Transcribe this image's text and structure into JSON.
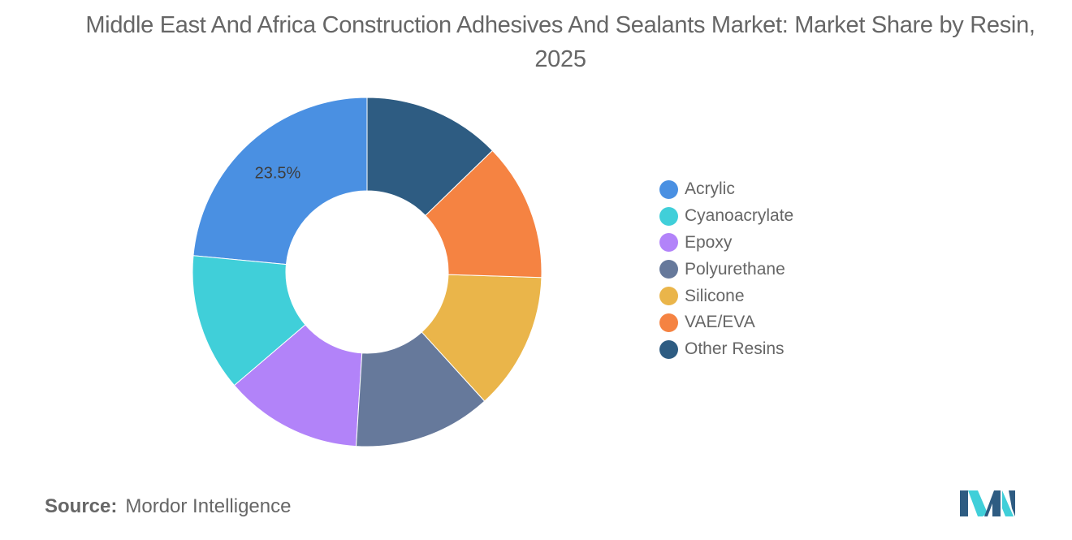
{
  "chart_data": {
    "type": "pie",
    "title": "Middle East And Africa Construction Adhesives And Sealants Market: Market Share by Resin, 2025",
    "donut": true,
    "categories": [
      "Acrylic",
      "Cyanoacrylate",
      "Epoxy",
      "Polyurethane",
      "Silicone",
      "VAE/EVA",
      "Other Resins"
    ],
    "values": [
      23.5,
      12.75,
      12.75,
      12.75,
      12.75,
      12.75,
      12.75
    ],
    "data_labels": [
      {
        "category": "Acrylic",
        "text": "23.5%"
      }
    ],
    "colors": [
      "#4a90e2",
      "#40cfd9",
      "#b283f9",
      "#66799b",
      "#eab54a",
      "#f58342",
      "#2e5c82"
    ],
    "legend": "right",
    "start": "top",
    "direction": "counterclockwise"
  },
  "source": {
    "label": "Source:",
    "text": "Mordor Intelligence"
  },
  "logo": {
    "icon": "mordor-intelligence-logo",
    "colors": [
      "#2e5c82",
      "#40cfd9"
    ]
  }
}
